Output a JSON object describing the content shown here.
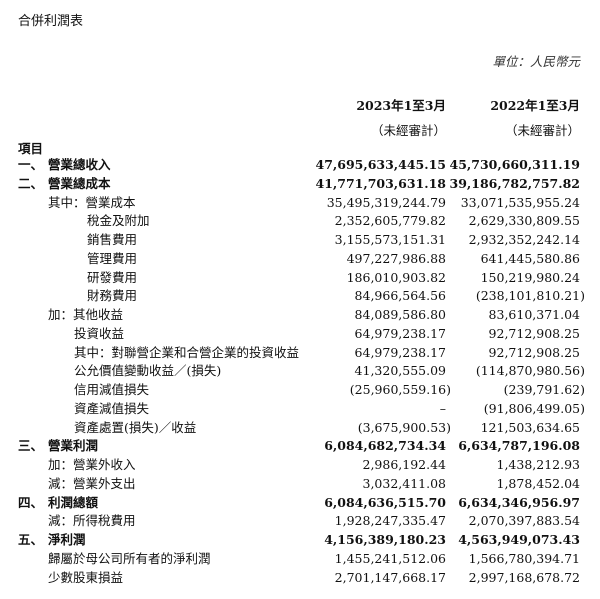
{
  "title": "合併利潤表",
  "unit": "單位：人民幣元",
  "columns": [
    {
      "period": "2023年1至3月",
      "note": "（未經審計）"
    },
    {
      "period": "2022年1至3月",
      "note": "（未經審計）"
    }
  ],
  "items_label": "項目",
  "rows": [
    {
      "num": "一、",
      "label": "營業總收入",
      "v2023": "47,695,633,445.15",
      "v2022": "45,730,660,311.19",
      "bold": true,
      "indent": 0
    },
    {
      "num": "二、",
      "label": "營業總成本",
      "v2023": "41,771,703,631.18",
      "v2022": "39,186,782,757.82",
      "bold": true,
      "indent": 0
    },
    {
      "num": "",
      "label": "其中：營業成本",
      "v2023": "35,495,319,244.79",
      "v2022": "33,071,535,955.24",
      "bold": false,
      "indent": 1
    },
    {
      "num": "",
      "label": "稅金及附加",
      "v2023": "2,352,605,779.82",
      "v2022": "2,629,330,809.55",
      "bold": false,
      "indent": 2
    },
    {
      "num": "",
      "label": "銷售費用",
      "v2023": "3,155,573,151.31",
      "v2022": "2,932,352,242.14",
      "bold": false,
      "indent": 2
    },
    {
      "num": "",
      "label": "管理費用",
      "v2023": "497,227,986.88",
      "v2022": "641,445,580.86",
      "bold": false,
      "indent": 2
    },
    {
      "num": "",
      "label": "研發費用",
      "v2023": "186,010,903.82",
      "v2022": "150,219,980.24",
      "bold": false,
      "indent": 2
    },
    {
      "num": "",
      "label": "財務費用",
      "v2023": "84,966,564.56",
      "v2022": "(238,101,810.21)",
      "bold": false,
      "indent": 2
    },
    {
      "num": "",
      "label": "加：其他收益",
      "v2023": "84,089,586.80",
      "v2022": "83,610,371.04",
      "bold": false,
      "indent": 1
    },
    {
      "num": "",
      "label": "投資收益",
      "v2023": "64,979,238.17",
      "v2022": "92,712,908.25",
      "bold": false,
      "indent": 3
    },
    {
      "num": "",
      "label": "其中：對聯營企業和合營企業的投資收益",
      "v2023": "64,979,238.17",
      "v2022": "92,712,908.25",
      "bold": false,
      "indent": 3
    },
    {
      "num": "",
      "label": "公允價值變動收益／(損失)",
      "v2023": "41,320,555.09",
      "v2022": "(114,870,980.56)",
      "bold": false,
      "indent": 3
    },
    {
      "num": "",
      "label": "信用減值損失",
      "v2023": "(25,960,559.16)",
      "v2022": "(239,791.62)",
      "bold": false,
      "indent": 3
    },
    {
      "num": "",
      "label": "資產減值損失",
      "v2023": "–",
      "v2022": "(91,806,499.05)",
      "bold": false,
      "indent": 3
    },
    {
      "num": "",
      "label": "資產處置(損失)／收益",
      "v2023": "(3,675,900.53)",
      "v2022": "121,503,634.65",
      "bold": false,
      "indent": 3
    },
    {
      "num": "三、",
      "label": "營業利潤",
      "v2023": "6,084,682,734.34",
      "v2022": "6,634,787,196.08",
      "bold": true,
      "indent": 0
    },
    {
      "num": "",
      "label": "加：營業外收入",
      "v2023": "2,986,192.44",
      "v2022": "1,438,212.93",
      "bold": false,
      "indent": 1
    },
    {
      "num": "",
      "label": "減：營業外支出",
      "v2023": "3,032,411.08",
      "v2022": "1,878,452.04",
      "bold": false,
      "indent": 1
    },
    {
      "num": "四、",
      "label": "利潤總額",
      "v2023": "6,084,636,515.70",
      "v2022": "6,634,346,956.97",
      "bold": true,
      "indent": 0
    },
    {
      "num": "",
      "label": "減：所得稅費用",
      "v2023": "1,928,247,335.47",
      "v2022": "2,070,397,883.54",
      "bold": false,
      "indent": 1
    },
    {
      "num": "五、",
      "label": "淨利潤",
      "v2023": "4,156,389,180.23",
      "v2022": "4,563,949,073.43",
      "bold": true,
      "indent": 0
    },
    {
      "num": "",
      "label": "歸屬於母公司所有者的淨利潤",
      "v2023": "1,455,241,512.06",
      "v2022": "1,566,780,394.71",
      "bold": false,
      "indent": 1
    },
    {
      "num": "",
      "label": "少數股東損益",
      "v2023": "2,701,147,668.17",
      "v2022": "2,997,168,678.72",
      "bold": false,
      "indent": 1
    }
  ]
}
